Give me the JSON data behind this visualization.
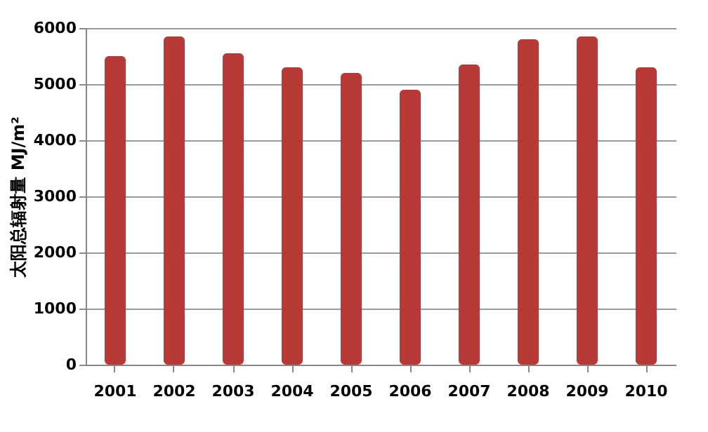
{
  "chart_data": {
    "type": "bar",
    "ylabel": "太阳总辐射量 MJ/m²",
    "categories": [
      "2001",
      "2002",
      "2003",
      "2004",
      "2005",
      "2006",
      "2007",
      "2008",
      "2009",
      "2010"
    ],
    "values": [
      5500,
      5850,
      5550,
      5300,
      5200,
      4900,
      5350,
      5800,
      5850,
      5300
    ],
    "color": "#b83a36",
    "ylim": [
      0,
      6000
    ],
    "yticks": [
      0,
      1000,
      2000,
      3000,
      4000,
      5000,
      6000
    ],
    "grid": "y"
  }
}
